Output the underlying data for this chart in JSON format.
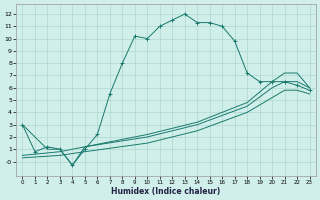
{
  "xlabel": "Humidex (Indice chaleur)",
  "bg_color": "#d0eeea",
  "grid_color": "#b0d8d0",
  "line_color": "#1a7a6e",
  "xlim": [
    -0.5,
    23.5
  ],
  "ylim": [
    -1.2,
    12.8
  ],
  "xticks": [
    0,
    1,
    2,
    3,
    4,
    5,
    6,
    7,
    8,
    9,
    10,
    11,
    12,
    13,
    14,
    15,
    16,
    17,
    18,
    19,
    20,
    21,
    22,
    23
  ],
  "yticks": [
    0,
    1,
    2,
    3,
    4,
    5,
    6,
    7,
    8,
    9,
    10,
    11,
    12
  ],
  "ytick_labels": [
    "-0",
    "1",
    "2",
    "3",
    "4",
    "5",
    "6",
    "7",
    "8",
    "9",
    "10",
    "11",
    "12"
  ],
  "curve1_x": [
    0,
    1,
    2,
    3,
    4,
    5,
    6,
    7,
    8,
    9,
    10,
    11,
    12,
    13,
    14,
    15,
    16,
    17,
    18,
    19,
    20,
    21,
    22,
    23
  ],
  "curve1_y": [
    3.0,
    0.8,
    1.2,
    1.0,
    -0.3,
    1.0,
    2.2,
    5.5,
    8.0,
    10.2,
    10.0,
    11.0,
    11.5,
    12.0,
    11.3,
    11.3,
    11.0,
    9.8,
    7.2,
    6.5,
    6.5,
    6.5,
    6.2,
    5.8
  ],
  "curve2_x": [
    0,
    2,
    3,
    4,
    5,
    10,
    14,
    18,
    20,
    21,
    22,
    23
  ],
  "curve2_y": [
    3.0,
    1.0,
    1.0,
    -0.3,
    1.2,
    2.2,
    3.2,
    4.8,
    6.5,
    7.2,
    7.2,
    6.0
  ],
  "curve3_x": [
    0,
    3,
    5,
    10,
    14,
    18,
    20,
    21,
    22,
    23
  ],
  "curve3_y": [
    0.5,
    0.8,
    1.2,
    2.0,
    3.0,
    4.5,
    6.0,
    6.5,
    6.5,
    6.0
  ],
  "curve4_x": [
    0,
    3,
    5,
    10,
    14,
    18,
    20,
    21,
    22,
    23
  ],
  "curve4_y": [
    0.3,
    0.5,
    0.8,
    1.5,
    2.5,
    4.0,
    5.2,
    5.8,
    5.8,
    5.5
  ]
}
